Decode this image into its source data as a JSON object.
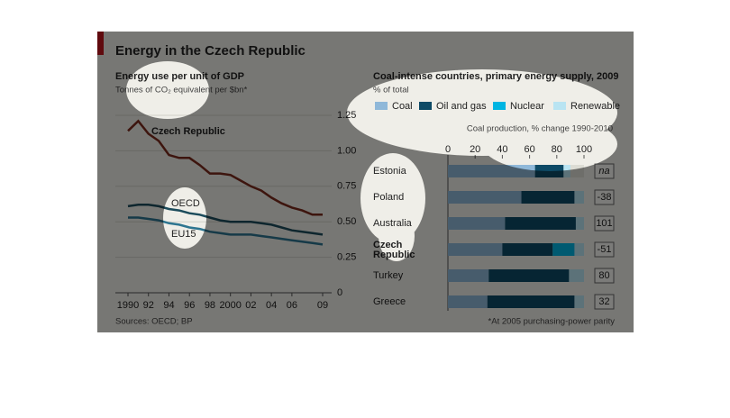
{
  "title": "Energy in the Czech Republic",
  "sources": "Sources: OECD; BP",
  "footnote": "*At 2005 purchasing-power parity",
  "chart_data": [
    {
      "type": "line",
      "title": "Energy use per unit of GDP",
      "subtitle": "Tonnes of CO₂ equivalent per $bn*",
      "x": [
        1990,
        1991,
        1992,
        1993,
        1994,
        1995,
        1996,
        1997,
        1998,
        1999,
        2000,
        2001,
        2002,
        2003,
        2004,
        2005,
        2006,
        2007,
        2008,
        2009
      ],
      "series": [
        {
          "name": "Czech Republic",
          "color": "#7b2a1c",
          "values": [
            1.14,
            1.21,
            1.12,
            1.07,
            0.97,
            0.95,
            0.95,
            0.9,
            0.84,
            0.84,
            0.83,
            0.79,
            0.75,
            0.72,
            0.67,
            0.63,
            0.6,
            0.58,
            0.55,
            0.55
          ]
        },
        {
          "name": "OECD",
          "color": "#1c4c5c",
          "values": [
            0.61,
            0.62,
            0.62,
            0.61,
            0.59,
            0.58,
            0.56,
            0.55,
            0.53,
            0.51,
            0.5,
            0.5,
            0.5,
            0.49,
            0.48,
            0.46,
            0.44,
            0.43,
            0.42,
            0.41
          ]
        },
        {
          "name": "EU15",
          "color": "#2d7590",
          "values": [
            0.53,
            0.53,
            0.52,
            0.51,
            0.49,
            0.48,
            0.46,
            0.45,
            0.43,
            0.42,
            0.41,
            0.41,
            0.41,
            0.4,
            0.39,
            0.38,
            0.37,
            0.36,
            0.35,
            0.34
          ]
        }
      ],
      "xlim": [
        1990,
        2009
      ],
      "xticks": [
        1990,
        {
          "value": 1992,
          "label": "92"
        },
        {
          "value": 1994,
          "label": "94"
        },
        {
          "value": 1996,
          "label": "96"
        },
        {
          "value": 1998,
          "label": "98"
        },
        2000,
        {
          "value": 2002,
          "label": "02"
        },
        {
          "value": 2004,
          "label": "04"
        },
        {
          "value": 2006,
          "label": "06"
        },
        {
          "value": 2009,
          "label": "09"
        }
      ],
      "ylim": [
        0,
        1.25
      ],
      "yticks": [
        0,
        0.25,
        {
          "value": 0.5,
          "label": "0.50"
        },
        0.75,
        {
          "value": 1,
          "label": "1.00"
        },
        1.25
      ],
      "grid": true
    },
    {
      "type": "stacked-bar-horizontal",
      "title": "Coal-intense countries, primary energy supply, 2009",
      "subtitle": "% of total",
      "categories": [
        "Estonia",
        "Poland",
        "Australia",
        "Czech Republic",
        "Turkey",
        "Greece"
      ],
      "series": [
        {
          "name": "Coal",
          "color": "#8fb8d9",
          "values": [
            64,
            54,
            42,
            40,
            30,
            29
          ]
        },
        {
          "name": "Oil and gas",
          "color": "#0d4a66",
          "values": [
            21,
            39,
            52,
            37,
            59,
            64
          ]
        },
        {
          "name": "Nuclear",
          "color": "#00b5e2",
          "values": [
            0,
            0,
            0,
            16,
            0,
            0
          ]
        },
        {
          "name": "Renewable",
          "color": "#b9e4f2",
          "values": [
            5,
            7,
            6,
            7,
            11,
            7
          ]
        }
      ],
      "xlim": [
        0,
        100
      ],
      "xticks": [
        0,
        20,
        40,
        60,
        80,
        100
      ],
      "coal_production": {
        "title": "Coal production, % change 1990-2010",
        "values": [
          null,
          -38,
          101,
          -51,
          80,
          32
        ],
        "value_labels": [
          "na",
          "-38",
          "101",
          "-51",
          "80",
          "32"
        ]
      }
    }
  ]
}
